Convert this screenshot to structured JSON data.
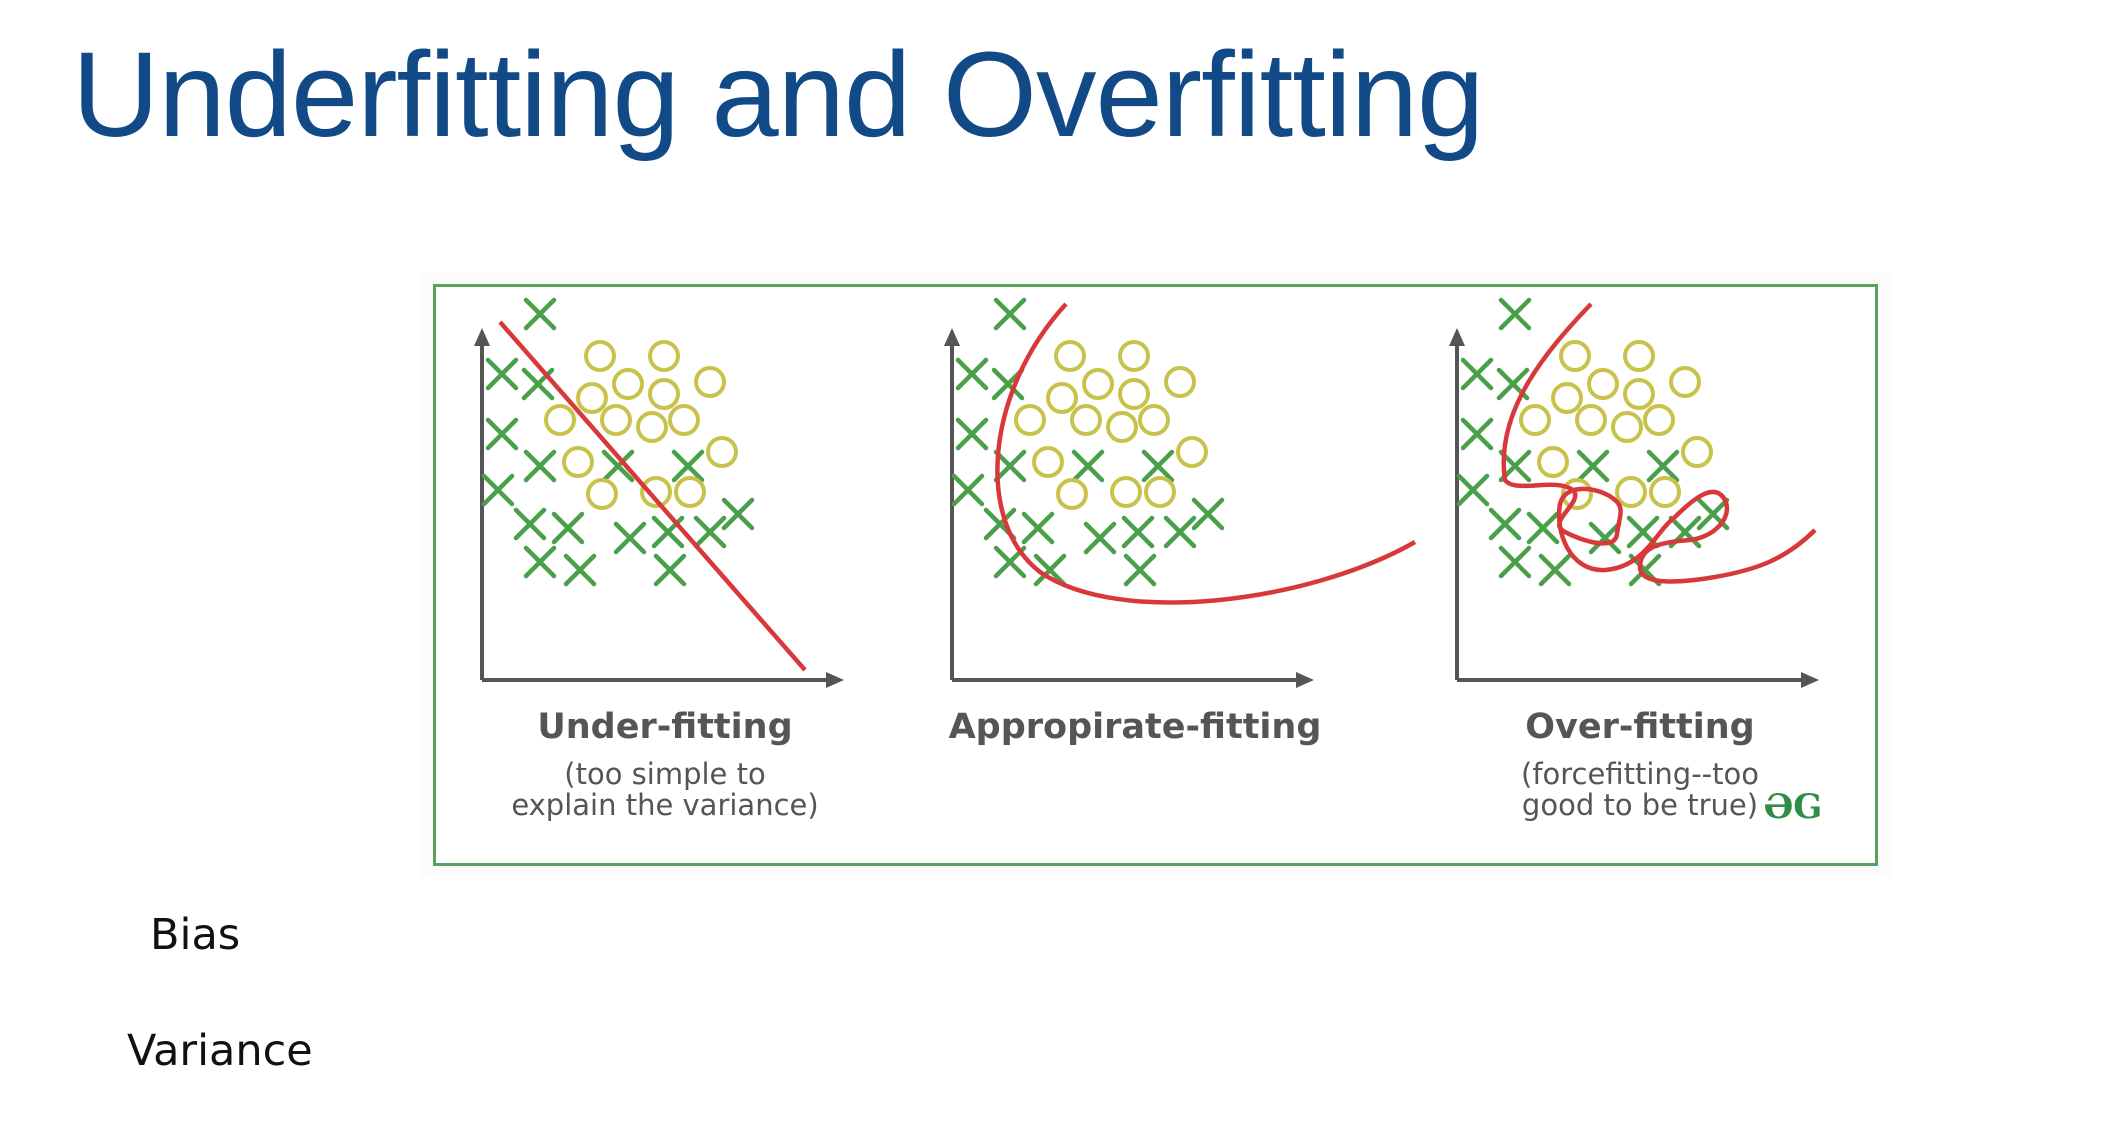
{
  "slide": {
    "title": "Underfitting and Overfitting",
    "labels": {
      "bias": "Bias",
      "variance": "Variance"
    }
  },
  "figure": {
    "colors": {
      "frame": "#5aa05e",
      "cross": "#4aa04a",
      "circle": "#c9c24a",
      "curve": "#d8383a",
      "axis": "#555555",
      "logo": "#2f8d46"
    },
    "logo": "ƏG",
    "panels": [
      {
        "key": "under",
        "title": "Under-fitting",
        "caption": [
          "(too simple to",
          "explain the variance)"
        ]
      },
      {
        "key": "appropriate",
        "title": "Appropirate-fitting",
        "caption": []
      },
      {
        "key": "over",
        "title": "Over-fitting",
        "caption": [
          "(forcefitting--too",
          "good to be true)"
        ]
      }
    ]
  }
}
